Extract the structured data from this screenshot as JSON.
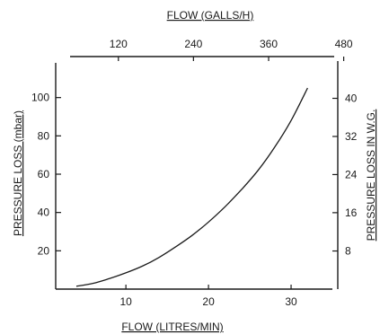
{
  "chart_data": {
    "type": "line",
    "x_label": "FLOW (LITRES/MIN)",
    "x_ticks": [
      10,
      20,
      30
    ],
    "x_range": [
      1.5,
      35
    ],
    "top_axis": {
      "label": "FLOW (GALLS/H)",
      "ticks": [
        120,
        240,
        360,
        480
      ],
      "ticks_in_litres_per_min": [
        9.09,
        18.18,
        27.28,
        36.37
      ]
    },
    "y_label": "PRESSURE LOSS (mbar)",
    "y_ticks": [
      20,
      40,
      60,
      80,
      100
    ],
    "y_range": [
      0,
      120
    ],
    "right_axis": {
      "label": "PRESSURE LOSS IN W.G.",
      "ticks": [
        8,
        16,
        24,
        32,
        40
      ],
      "ticks_in_mbar": [
        19.9,
        39.9,
        59.8,
        79.7,
        99.6
      ]
    },
    "series": [
      {
        "x": [
          4,
          6,
          8,
          10,
          12,
          14,
          16,
          18,
          20,
          22,
          24,
          26,
          28,
          30,
          32
        ],
        "y": [
          1.5,
          3,
          5.5,
          8.5,
          12,
          16.5,
          22,
          28,
          35,
          43,
          52,
          62,
          74,
          88,
          105
        ]
      }
    ],
    "colors": {
      "line": "#1a1a1a",
      "axis": "#1a1a1a"
    }
  }
}
